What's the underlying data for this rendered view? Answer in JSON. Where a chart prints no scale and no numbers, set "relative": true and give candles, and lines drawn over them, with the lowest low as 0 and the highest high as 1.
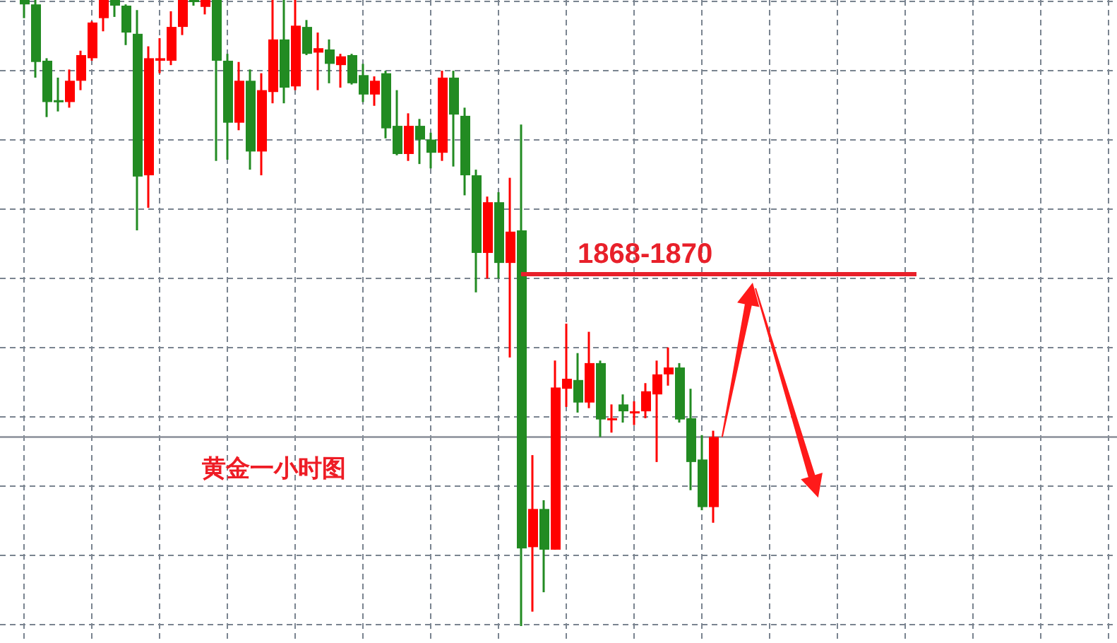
{
  "chart_data": {
    "type": "candlestick",
    "title": "黄金一小时图",
    "relative": true,
    "grid": true,
    "categories": [
      null,
      null,
      null,
      null,
      null,
      null,
      null,
      null,
      null,
      null,
      null,
      null,
      null,
      null,
      null,
      null,
      null,
      null,
      null,
      null,
      null,
      null,
      null,
      null,
      null,
      null,
      null,
      null,
      null,
      null,
      null,
      null,
      null,
      null,
      null,
      null,
      null,
      null,
      null,
      null,
      null,
      null,
      null,
      null,
      null,
      null,
      null,
      null,
      null,
      null,
      null,
      null,
      null,
      null,
      null,
      null,
      null,
      null,
      null,
      null,
      null,
      null,
      null,
      null,
      null,
      null,
      null,
      null,
      null,
      null,
      null,
      null,
      null,
      null,
      null,
      null,
      null,
      null,
      null,
      null,
      null,
      null,
      null,
      null,
      null,
      null,
      null,
      null,
      null,
      null,
      null,
      null,
      null,
      null,
      null,
      null,
      null
    ],
    "ohlc": [
      [
        1,
        1,
        0.971,
        0.993
      ],
      [
        0.993,
        1,
        0.876,
        0.901
      ],
      [
        0.903,
        0.907,
        0.813,
        0.837
      ],
      [
        0.84,
        0.876,
        0.822,
        0.837
      ],
      [
        0.837,
        0.889,
        0.828,
        0.871
      ],
      [
        0.871,
        0.919,
        0.856,
        0.912
      ],
      [
        0.907,
        0.966,
        0.903,
        0.964
      ],
      [
        0.971,
        1,
        0.95,
        1
      ],
      [
        1,
        1,
        0.973,
        0.991
      ],
      [
        0.991,
        0.993,
        0.928,
        0.948
      ],
      [
        0.946,
        0.984,
        0.632,
        0.718
      ],
      [
        0.72,
        0.926,
        0.668,
        0.907
      ],
      [
        0.903,
        0.939,
        0.883,
        0.907
      ],
      [
        0.903,
        0.982,
        0.896,
        0.957
      ],
      [
        0.957,
        1,
        0.944,
        1
      ],
      [
        1,
        1,
        0.991,
        0.998
      ],
      [
        0.989,
        1,
        0.977,
        1
      ],
      [
        1,
        1,
        0.743,
        0.903
      ],
      [
        0.903,
        0.914,
        0.745,
        0.804
      ],
      [
        0.804,
        0.901,
        0.792,
        0.871
      ],
      [
        0.871,
        0.889,
        0.729,
        0.758
      ],
      [
        0.758,
        0.883,
        0.72,
        0.856
      ],
      [
        0.853,
        1,
        0.835,
        0.937
      ],
      [
        0.937,
        1,
        0.835,
        0.86
      ],
      [
        0.862,
        1,
        0.856,
        0.959
      ],
      [
        0.957,
        0.968,
        0.912,
        0.914
      ],
      [
        0.916,
        0.948,
        0.856,
        0.923
      ],
      [
        0.921,
        0.937,
        0.867,
        0.898
      ],
      [
        0.896,
        0.914,
        0.86,
        0.91
      ],
      [
        0.912,
        0.914,
        0.865,
        0.867
      ],
      [
        0.88,
        0.898,
        0.837,
        0.849
      ],
      [
        0.849,
        0.878,
        0.831,
        0.871
      ],
      [
        0.883,
        0.887,
        0.779,
        0.795
      ],
      [
        0.799,
        0.856,
        0.752,
        0.754
      ],
      [
        0.754,
        0.819,
        0.743,
        0.799
      ],
      [
        0.799,
        0.81,
        0.738,
        0.777
      ],
      [
        0.777,
        0.788,
        0.731,
        0.756
      ],
      [
        0.756,
        0.887,
        0.743,
        0.876
      ],
      [
        0.876,
        0.887,
        0.734,
        0.817
      ],
      [
        0.815,
        0.828,
        0.688,
        0.72
      ],
      [
        0.72,
        0.729,
        0.533,
        0.596
      ],
      [
        0.596,
        0.686,
        0.555,
        0.677
      ],
      [
        0.677,
        0.693,
        0.555,
        0.58
      ],
      [
        0.58,
        0.716,
        0.429,
        0.63
      ],
      [
        0.632,
        0.801,
        0,
        0.124
      ],
      [
        0.126,
        0.273,
        0.023,
        0.187
      ],
      [
        0.187,
        0.201,
        0.054,
        0.122
      ],
      [
        0.122,
        0.424,
        0.122,
        0.381
      ],
      [
        0.379,
        0.483,
        0.35,
        0.395
      ],
      [
        0.393,
        0.436,
        0.341,
        0.357
      ],
      [
        0.357,
        0.47,
        0.348,
        0.42
      ],
      [
        0.42,
        0.424,
        0.302,
        0.33
      ],
      [
        0.33,
        0.354,
        0.309,
        0.332
      ],
      [
        0.354,
        0.37,
        0.325,
        0.343
      ],
      [
        0.343,
        0.359,
        0.321,
        0.343
      ],
      [
        0.343,
        0.388,
        0.332,
        0.375
      ],
      [
        0.37,
        0.424,
        0.262,
        0.402
      ],
      [
        0.402,
        0.445,
        0.384,
        0.413
      ],
      [
        0.413,
        0.42,
        0.325,
        0.33
      ],
      [
        0.332,
        0.379,
        0.217,
        0.262
      ],
      [
        0.266,
        0.305,
        0.185,
        0.19
      ],
      [
        0.19,
        0.312,
        0.165,
        0.302
      ],
      null,
      null,
      null,
      null,
      null,
      null,
      null,
      null,
      null,
      null,
      null,
      null,
      null,
      null,
      null,
      null,
      null,
      null,
      null,
      null,
      null,
      null,
      null,
      null,
      null,
      null,
      null,
      null,
      null,
      null,
      null,
      null,
      null,
      null,
      null
    ],
    "colors": [
      "#228b22",
      "#228b22",
      "#228b22",
      "#228b22",
      "#ff0000",
      "#ff0000",
      "#ff0000",
      "#ff0000",
      "#228b22",
      "#228b22",
      "#228b22",
      "#ff0000",
      "#ff0000",
      "#ff0000",
      "#ff0000",
      "#228b22",
      "#ff0000",
      "#228b22",
      "#228b22",
      "#ff0000",
      "#228b22",
      "#ff0000",
      "#ff0000",
      "#228b22",
      "#ff0000",
      "#228b22",
      "#ff0000",
      "#228b22",
      "#ff0000",
      "#228b22",
      "#228b22",
      "#ff0000",
      "#228b22",
      "#228b22",
      "#ff0000",
      "#228b22",
      "#228b22",
      "#ff0000",
      "#228b22",
      "#228b22",
      "#228b22",
      "#ff0000",
      "#228b22",
      "#ff0000",
      "#228b22",
      "#ff0000",
      "#228b22",
      "#ff0000",
      "#ff0000",
      "#228b22",
      "#ff0000",
      "#228b22",
      "#ff0000",
      "#228b22",
      "#ff0000",
      "#ff0000",
      "#ff0000",
      "#ff0000",
      "#228b22",
      "#228b22",
      "#228b22",
      "#ff0000",
      null,
      null,
      null,
      null,
      null,
      null,
      null,
      null,
      null,
      null,
      null,
      null,
      null,
      null,
      null,
      null,
      null,
      null,
      null,
      null,
      null,
      null,
      null,
      null,
      null,
      null,
      null,
      null,
      null,
      null,
      null,
      null,
      null,
      null,
      null
    ],
    "series": [
      {
        "type": "line",
        "name": "1868-1870",
        "color": "#e8202a",
        "values": [
          null,
          null,
          null,
          null,
          null,
          null,
          null,
          null,
          null,
          null,
          null,
          null,
          null,
          null,
          null,
          null,
          null,
          null,
          null,
          null,
          null,
          null,
          null,
          null,
          null,
          null,
          null,
          null,
          null,
          null,
          null,
          null,
          null,
          null,
          null,
          null,
          null,
          null,
          null,
          null,
          null,
          null,
          null,
          null,
          0.562,
          0.562,
          0.562,
          0.562,
          0.562,
          0.562,
          0.562,
          0.562,
          0.562,
          0.562,
          0.562,
          0.562,
          0.562,
          0.562,
          0.562,
          0.562,
          0.562,
          0.562,
          0.562,
          0.562,
          0.562,
          0.562,
          0.562,
          0.562,
          0.562,
          0.562,
          0.562,
          0.562,
          0.562,
          0.562,
          0.562,
          0.562,
          0.562,
          0.562,
          0.562,
          0.562,
          null,
          null,
          null,
          null,
          null,
          null,
          null,
          null,
          null,
          null,
          null,
          null,
          null,
          null,
          null,
          null,
          null
        ]
      }
    ],
    "ref_lines": [
      {
        "axis": "y",
        "value": 0.302,
        "color": "#8a8f99"
      }
    ]
  }
}
